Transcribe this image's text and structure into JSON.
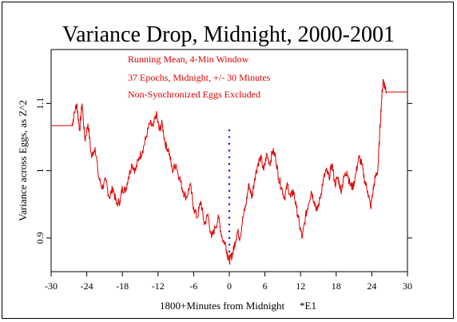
{
  "chart_data": {
    "type": "line",
    "title": "Variance Drop, Midnight, 2000-2001",
    "xlabel": "1800+Minutes from Midnight",
    "xlabel_suffix": "*E1",
    "ylabel": "Variance across Eggs, as Z^2",
    "xlim": [
      -30,
      30
    ],
    "ylim": [
      0.85,
      1.18
    ],
    "x_ticks": [
      -30,
      -24,
      -18,
      -12,
      -6,
      0,
      6,
      12,
      18,
      24,
      30
    ],
    "y_ticks": [
      0.9,
      1,
      1.1
    ],
    "y_tick_labels": [
      "0.9",
      "1",
      "1.1"
    ],
    "annotations": [
      "Running Mean, 4-Min Window",
      "37 Epochs, Midnight, +/- 30 Minutes",
      "Non-Synchronized Eggs Excluded"
    ],
    "colors": {
      "series": "#e00000",
      "marker": "#0000ff",
      "axis": "#000000"
    },
    "series": [
      {
        "color": "#e00000",
        "x": [
          -30,
          -26.5,
          -26.2,
          -25.7,
          -25.2,
          -24.8,
          -24.3,
          -23.8,
          -23.2,
          -22.6,
          -22.0,
          -21.4,
          -20.8,
          -20.2,
          -19.6,
          -19.0,
          -18.4,
          -18.0,
          -17.5,
          -17.0,
          -16.4,
          -15.8,
          -15.2,
          -14.6,
          -14.0,
          -13.4,
          -12.8,
          -12.3,
          -11.8,
          -11.3,
          -10.8,
          -10.2,
          -9.6,
          -9.0,
          -8.4,
          -7.8,
          -7.2,
          -6.6,
          -6.0,
          -5.4,
          -4.8,
          -4.2,
          -3.6,
          -3.0,
          -2.4,
          -1.8,
          -1.2,
          -0.6,
          -0.3,
          0.0,
          0.3,
          0.6,
          1.0,
          1.4,
          1.8,
          2.3,
          2.8,
          3.3,
          3.8,
          4.3,
          4.8,
          5.3,
          5.8,
          6.3,
          6.8,
          7.3,
          7.8,
          8.3,
          8.8,
          9.3,
          9.8,
          10.3,
          10.8,
          11.3,
          11.8,
          12.3,
          12.8,
          13.3,
          13.8,
          14.3,
          14.8,
          15.3,
          15.8,
          16.3,
          16.8,
          17.3,
          17.8,
          18.3,
          18.8,
          19.3,
          19.8,
          20.3,
          20.8,
          21.3,
          21.8,
          22.3,
          22.8,
          23.3,
          23.8,
          24.2,
          24.6,
          25.0,
          25.3,
          25.6,
          25.9,
          26.2,
          26.5,
          30
        ],
        "y": [
          1.067,
          1.067,
          1.08,
          1.1,
          1.06,
          1.1,
          1.045,
          1.07,
          1.02,
          1.035,
          0.99,
          0.975,
          0.985,
          0.96,
          0.975,
          0.95,
          0.955,
          0.975,
          0.97,
          0.99,
          1.01,
          1.0,
          1.02,
          1.03,
          1.05,
          1.07,
          1.065,
          1.085,
          1.06,
          1.07,
          1.04,
          1.03,
          1.0,
          1.01,
          0.99,
          0.97,
          0.96,
          0.98,
          0.945,
          0.93,
          0.955,
          0.92,
          0.935,
          0.9,
          0.915,
          0.93,
          0.9,
          0.89,
          0.875,
          0.866,
          0.872,
          0.878,
          0.895,
          0.91,
          0.9,
          0.93,
          0.95,
          0.98,
          0.96,
          0.99,
          1.01,
          1.02,
          1.0,
          1.025,
          1.01,
          1.03,
          1.02,
          0.99,
          0.975,
          0.96,
          0.98,
          0.96,
          0.97,
          0.945,
          0.92,
          0.9,
          0.93,
          0.95,
          0.97,
          0.955,
          0.94,
          0.96,
          0.985,
          1.0,
          0.99,
          1.01,
          0.98,
          0.99,
          0.97,
          0.99,
          1.0,
          0.98,
          0.975,
          0.995,
          1.02,
          1.01,
          0.985,
          0.97,
          0.945,
          0.97,
          0.99,
          1.0,
          1.05,
          1.1,
          1.135,
          1.125,
          1.117,
          1.117
        ]
      }
    ],
    "marker_series": {
      "x": [
        0,
        0,
        0,
        0,
        0,
        0,
        0,
        0,
        0,
        0,
        0,
        0,
        0,
        0,
        0,
        0,
        0,
        0,
        0,
        0
      ],
      "y": [
        1.06,
        1.05,
        1.04,
        1.03,
        1.02,
        1.01,
        1.0,
        0.99,
        0.98,
        0.97,
        0.96,
        0.95,
        0.94,
        0.93,
        0.92,
        0.91,
        0.9,
        0.89,
        0.88,
        0.87
      ]
    },
    "grid": false,
    "legend": "none"
  }
}
